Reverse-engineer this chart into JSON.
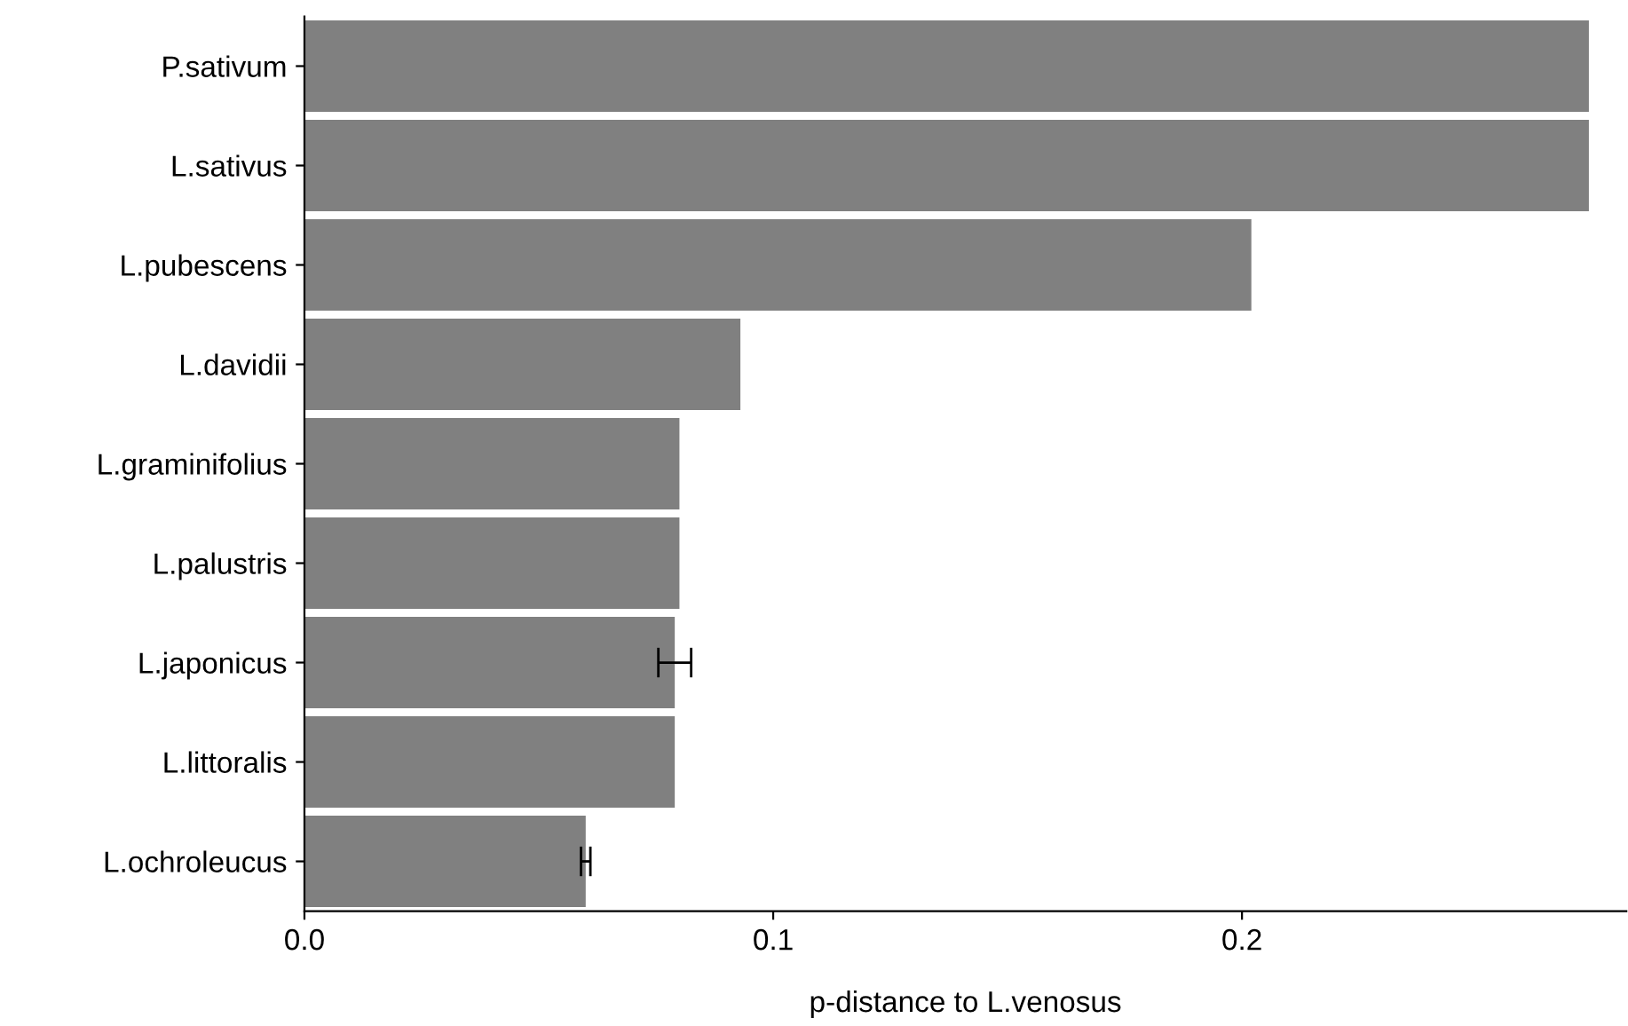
{
  "chart_data": {
    "type": "bar",
    "orientation": "horizontal",
    "xlabel": "p-distance to L.venosus",
    "categories": [
      "P.sativum",
      "L.sativus",
      "L.pubescens",
      "L.davidii",
      "L.graminifolius",
      "L.palustris",
      "L.japonicus",
      "L.littoralis",
      "L.ochroleucus"
    ],
    "values": [
      0.274,
      0.274,
      0.202,
      0.093,
      0.08,
      0.08,
      0.079,
      0.079,
      0.06
    ],
    "errors": [
      null,
      null,
      null,
      null,
      null,
      null,
      [
        0.0755,
        0.0825
      ],
      null,
      [
        0.059,
        0.061
      ]
    ],
    "color": "#808080",
    "xlim": [
      0,
      0.282
    ],
    "xticks": [
      {
        "value": 0,
        "label": "0.0"
      },
      0.1,
      0.2
    ],
    "grid": false
  }
}
